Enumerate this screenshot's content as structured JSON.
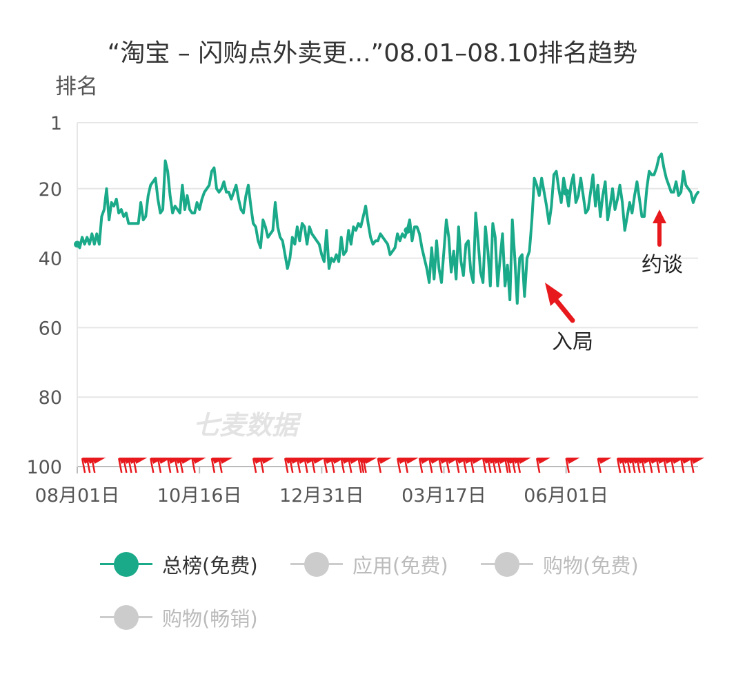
{
  "chart_data": {
    "type": "line",
    "title": "“淘宝 – 闪购点外卖更...”08.01–08.10排名趋势",
    "ylabel": "排名",
    "y_inverted": true,
    "ylim": [
      1,
      100
    ],
    "y_ticks": [
      "1",
      "20",
      "40",
      "60",
      "80",
      "100"
    ],
    "x_ticks": [
      "08月01日",
      "10月16日",
      "12月31日",
      "03月17日",
      "06月01日"
    ],
    "x_range": [
      "08-01",
      "08-10 (following year)"
    ],
    "grid": true,
    "legend_position": "bottom",
    "watermark": "七麦数据",
    "line_color": "#1aaa8a",
    "inactive_color": "#cccccc",
    "flag_color": "#e8191d",
    "flag_row": "bottom (rank 100)",
    "series": [
      {
        "name": "总榜(免费)",
        "active": true,
        "values": [
          36,
          37,
          34,
          36,
          34,
          36,
          33,
          36,
          33,
          36,
          28,
          26,
          20,
          29,
          24,
          25,
          23,
          27,
          26,
          28,
          27,
          30,
          30,
          30,
          30,
          30,
          24,
          29,
          28,
          22,
          19,
          18,
          17,
          23,
          27,
          26,
          12,
          15,
          22,
          27,
          25,
          26,
          27,
          19,
          26,
          22,
          26,
          27,
          27,
          24,
          26,
          23,
          21,
          20,
          19,
          15,
          14,
          20,
          21,
          20,
          18,
          21,
          21,
          23,
          21,
          19,
          23,
          26,
          27,
          22,
          19,
          25,
          30,
          31,
          35,
          37,
          29,
          31,
          34,
          33,
          32,
          24,
          31,
          34,
          35,
          39,
          43,
          40,
          34,
          36,
          31,
          35,
          30,
          31,
          36,
          31,
          33,
          34,
          35,
          36,
          39,
          41,
          32,
          43,
          40,
          41,
          39,
          41,
          34,
          39,
          38,
          32,
          36,
          31,
          32,
          30,
          31,
          28,
          25,
          30,
          34,
          36,
          35,
          35,
          33,
          34,
          35,
          36,
          39,
          38,
          37,
          33,
          35,
          33,
          34,
          32,
          29,
          35,
          31,
          31,
          33,
          37,
          40,
          43,
          47,
          37,
          46,
          35,
          43,
          47,
          38,
          29,
          34,
          44,
          38,
          46,
          31,
          41,
          45,
          36,
          35,
          44,
          47,
          27,
          35,
          44,
          47,
          31,
          38,
          48,
          30,
          34,
          48,
          40,
          33,
          48,
          42,
          52,
          29,
          40,
          53,
          40,
          39,
          51,
          40,
          38,
          29,
          17,
          19,
          22,
          17,
          21,
          25,
          30,
          25,
          16,
          15,
          20,
          24,
          17,
          21,
          25,
          19,
          16,
          24,
          22,
          17,
          22,
          27,
          26,
          21,
          16,
          25,
          19,
          28,
          22,
          18,
          29,
          25,
          20,
          26,
          23,
          19,
          24,
          32,
          28,
          24,
          27,
          22,
          18,
          23,
          28,
          28,
          20,
          15,
          16,
          16,
          14,
          11,
          10,
          14,
          17,
          19,
          21,
          21,
          18,
          22,
          21,
          15,
          19,
          20,
          21,
          24,
          22,
          21
        ]
      },
      {
        "name": "应用(免费)",
        "active": false,
        "values": []
      },
      {
        "name": "购物(免费)",
        "active": false,
        "values": []
      },
      {
        "name": "购物(畅销)",
        "active": false,
        "values": []
      }
    ],
    "annotations": [
      {
        "text": "入局",
        "x_index": 189,
        "rank": 48
      },
      {
        "text": "约谈",
        "x_index": 236,
        "rank": 27
      }
    ],
    "flag_indices": [
      2,
      4,
      6,
      17,
      19,
      21,
      23,
      30,
      33,
      37,
      40,
      42,
      47,
      55,
      58,
      72,
      75,
      85,
      87,
      90,
      93,
      96,
      101,
      104,
      108,
      111,
      115,
      116,
      117,
      123,
      131,
      134,
      140,
      144,
      148,
      151,
      155,
      158,
      161,
      166,
      168,
      170,
      172,
      175,
      176,
      178,
      180,
      188,
      200,
      213,
      221,
      223,
      225,
      227,
      229,
      231,
      234,
      237,
      240,
      243,
      247,
      251
    ]
  }
}
